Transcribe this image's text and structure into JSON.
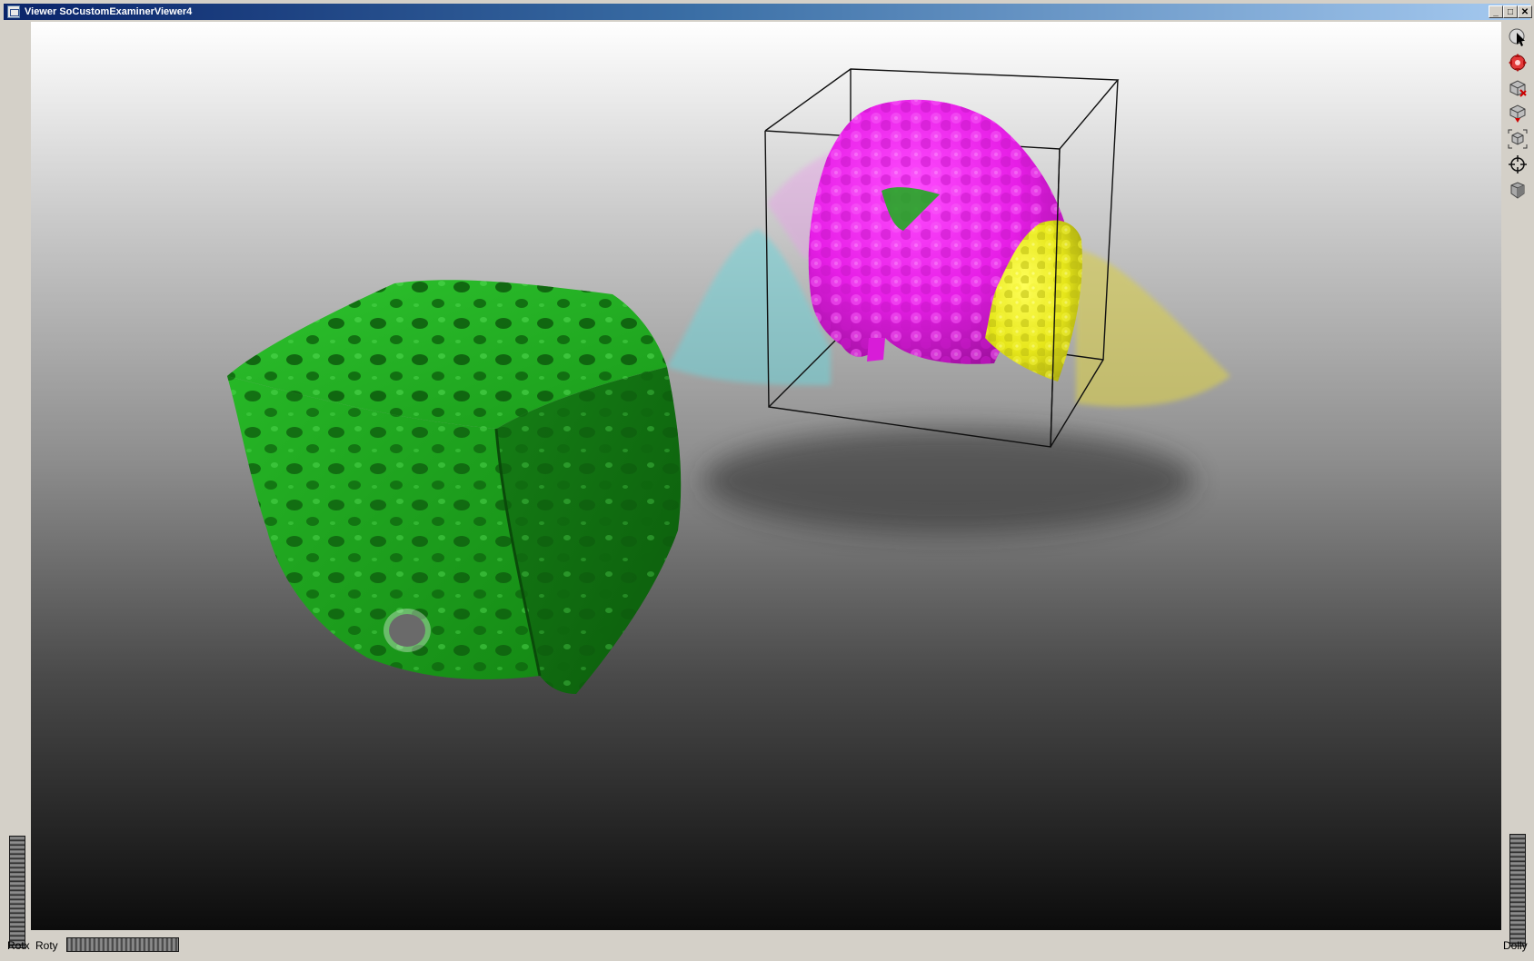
{
  "window": {
    "title": "Viewer SoCustomExaminerViewer4",
    "controls": {
      "minimize": "_",
      "maximize": "□",
      "close": "✕"
    }
  },
  "toolbar": {
    "tools": [
      {
        "name": "select-pointer-icon"
      },
      {
        "name": "view-move-icon"
      },
      {
        "name": "camera-home-icon"
      },
      {
        "name": "set-home-icon"
      },
      {
        "name": "view-all-icon"
      },
      {
        "name": "seek-crosshair-icon"
      },
      {
        "name": "camera-type-icon"
      }
    ]
  },
  "thumbwheels": {
    "rotx": "Rotx",
    "roty": "Roty",
    "dolly": "Dolly"
  },
  "colors": {
    "title_gradient_start": "#0a246a",
    "title_gradient_end": "#a6caf0",
    "green_object": "#1fa51f",
    "magenta_object": "#e61ee6",
    "yellow_object": "#e6e61a",
    "cyan_shadow": "#6fd3d8"
  }
}
